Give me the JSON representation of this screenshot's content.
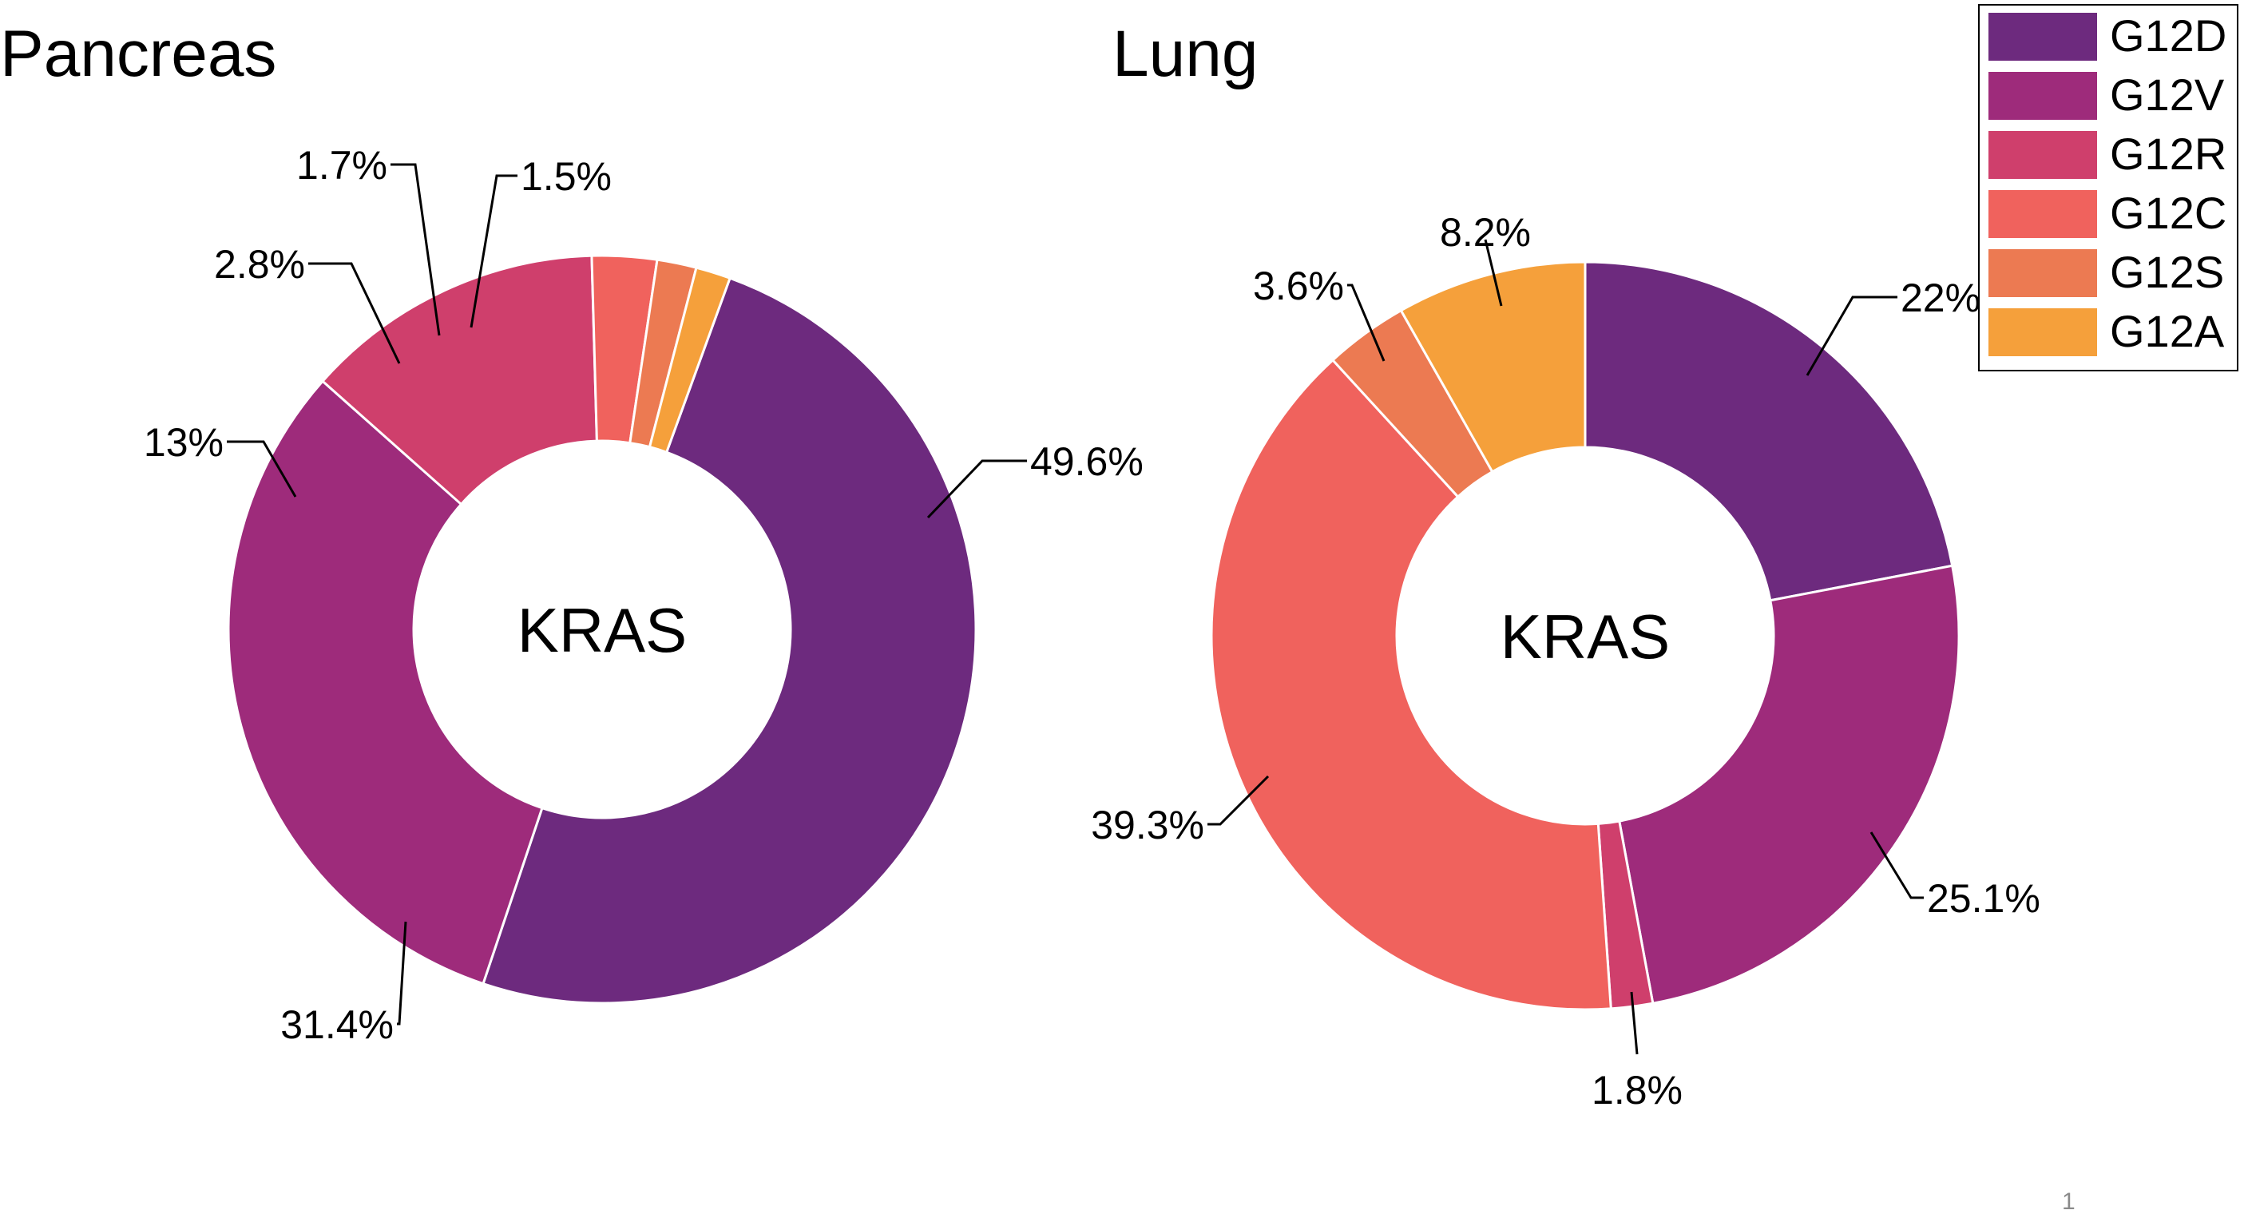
{
  "chart_data": [
    {
      "type": "pie",
      "title": "Pancreas",
      "center_label": "KRAS",
      "categories": [
        "G12D",
        "G12V",
        "G12R",
        "G12C",
        "G12S",
        "G12A"
      ],
      "values": [
        49.6,
        31.4,
        13,
        2.8,
        1.7,
        1.5
      ],
      "value_labels": [
        "49.6%",
        "31.4%",
        "13%",
        "2.8%",
        "1.7%",
        "1.5%"
      ]
    },
    {
      "type": "pie",
      "title": "Lung",
      "center_label": "KRAS",
      "categories": [
        "G12D",
        "G12V",
        "G12R",
        "G12C",
        "G12S",
        "G12A"
      ],
      "values": [
        22,
        25.1,
        1.8,
        39.3,
        3.6,
        8.2
      ],
      "value_labels": [
        "22%",
        "25.1%",
        "1.8%",
        "39.3%",
        "3.6%",
        "8.2%"
      ]
    }
  ],
  "legend": {
    "placement": "top-right",
    "items": [
      {
        "label": "G12D",
        "color": "#6d2a7e"
      },
      {
        "label": "G12V",
        "color": "#9e2b7b"
      },
      {
        "label": "G12R",
        "color": "#cf3f6c"
      },
      {
        "label": "G12C",
        "color": "#f0625d"
      },
      {
        "label": "G12S",
        "color": "#ec7a52"
      },
      {
        "label": "G12A",
        "color": "#f5a03b"
      }
    ]
  },
  "page_number": "1"
}
